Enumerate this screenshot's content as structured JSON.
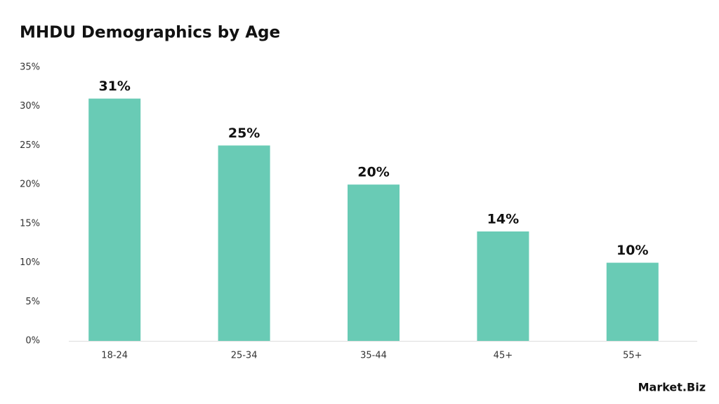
{
  "chart_data": {
    "type": "bar",
    "title": "MHDU Demographics by Age",
    "categories": [
      "18-24",
      "25-34",
      "35-44",
      "45+",
      "55+"
    ],
    "values": [
      31,
      25,
      20,
      14,
      10
    ],
    "value_labels": [
      "31%",
      "25%",
      "20%",
      "14%",
      "10%"
    ],
    "color": "#69cbb5",
    "ylim": [
      0,
      35
    ],
    "yticks": [
      {
        "value": 0,
        "label": "0%"
      },
      {
        "value": 5,
        "label": "5%"
      },
      {
        "value": 10,
        "label": "10%"
      },
      {
        "value": 15,
        "label": "15%"
      },
      {
        "value": 20,
        "label": "20%"
      },
      {
        "value": 25,
        "label": "25%"
      },
      {
        "value": 30,
        "label": "30%"
      },
      {
        "value": 35,
        "label": "35%"
      }
    ],
    "grid": false,
    "source_logo": "Market.Biz"
  }
}
